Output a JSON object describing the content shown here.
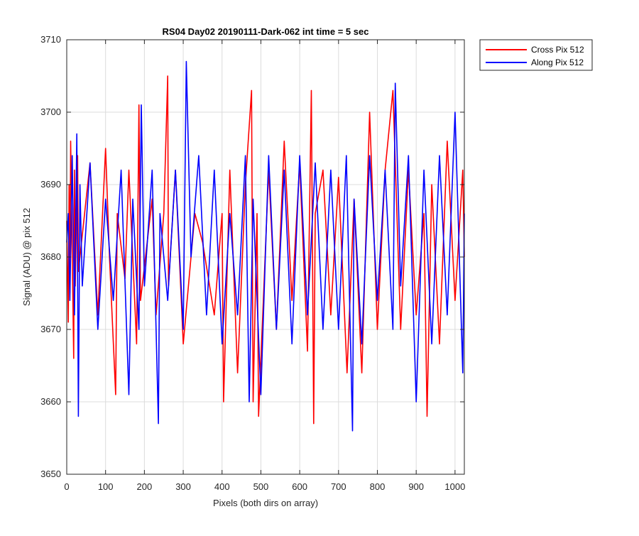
{
  "chart_data": {
    "type": "line",
    "title": "RS04 Day02 20190111-Dark-062 int time = 5 sec",
    "xlabel": "Pixels (both dirs on array)",
    "ylabel": "Signal (ADU) @ pix 512",
    "xlim": [
      0,
      1024
    ],
    "ylim": [
      3650,
      3710
    ],
    "xticks": [
      0,
      100,
      200,
      300,
      400,
      500,
      600,
      700,
      800,
      900,
      1000
    ],
    "yticks": [
      3650,
      3660,
      3670,
      3680,
      3690,
      3700,
      3710
    ],
    "grid": true,
    "legend_position": "outside-top-right",
    "series": [
      {
        "name": "Cross Pix 512",
        "color": "#ff0000",
        "x": [
          0,
          4,
          6,
          8,
          10,
          18,
          20,
          22,
          28,
          30,
          60,
          80,
          100,
          110,
          126,
          130,
          150,
          160,
          180,
          186,
          190,
          220,
          230,
          250,
          260,
          262,
          280,
          300,
          330,
          350,
          380,
          400,
          404,
          420,
          440,
          460,
          476,
          480,
          490,
          494,
          520,
          540,
          560,
          580,
          600,
          620,
          630,
          636,
          640,
          660,
          680,
          700,
          722,
          740,
          760,
          780,
          800,
          820,
          840,
          860,
          880,
          900,
          920,
          928,
          940,
          960,
          980,
          1000,
          1020,
          1024
        ],
        "y": [
          3685,
          3671,
          3690,
          3675,
          3696,
          3666,
          3692,
          3676,
          3694,
          3678,
          3693,
          3672,
          3695,
          3680,
          3661,
          3686,
          3677,
          3692,
          3668,
          3701,
          3674,
          3688,
          3672,
          3686,
          3705,
          3676,
          3692,
          3668,
          3686,
          3682,
          3672,
          3686,
          3660,
          3692,
          3664,
          3690,
          3703,
          3660,
          3686,
          3658,
          3692,
          3670,
          3696,
          3674,
          3693,
          3667,
          3703,
          3657,
          3686,
          3692,
          3672,
          3691,
          3664,
          3688,
          3664,
          3700,
          3670,
          3692,
          3703,
          3670,
          3692,
          3672,
          3686,
          3658,
          3690,
          3668,
          3696,
          3674,
          3692,
          3680
        ]
      },
      {
        "name": "Along Pix 512",
        "color": "#0000ff",
        "x": [
          0,
          4,
          8,
          14,
          20,
          26,
          30,
          34,
          40,
          60,
          80,
          100,
          120,
          140,
          160,
          170,
          186,
          192,
          200,
          220,
          236,
          240,
          260,
          280,
          300,
          308,
          320,
          340,
          360,
          380,
          400,
          420,
          440,
          460,
          470,
          480,
          500,
          520,
          540,
          560,
          580,
          600,
          620,
          640,
          660,
          680,
          700,
          720,
          736,
          740,
          760,
          780,
          800,
          820,
          840,
          846,
          860,
          880,
          900,
          920,
          940,
          960,
          980,
          1000,
          1020,
          1024
        ],
        "y": [
          3682,
          3686,
          3674,
          3694,
          3672,
          3697,
          3658,
          3690,
          3676,
          3693,
          3670,
          3688,
          3674,
          3692,
          3661,
          3688,
          3670,
          3701,
          3676,
          3692,
          3657,
          3686,
          3674,
          3692,
          3670,
          3707,
          3680,
          3694,
          3672,
          3692,
          3668,
          3686,
          3672,
          3694,
          3660,
          3688,
          3661,
          3694,
          3670,
          3692,
          3668,
          3694,
          3672,
          3693,
          3670,
          3692,
          3670,
          3694,
          3656,
          3688,
          3668,
          3694,
          3674,
          3692,
          3670,
          3704,
          3676,
          3694,
          3660,
          3692,
          3668,
          3694,
          3672,
          3700,
          3664,
          3686
        ]
      }
    ]
  }
}
